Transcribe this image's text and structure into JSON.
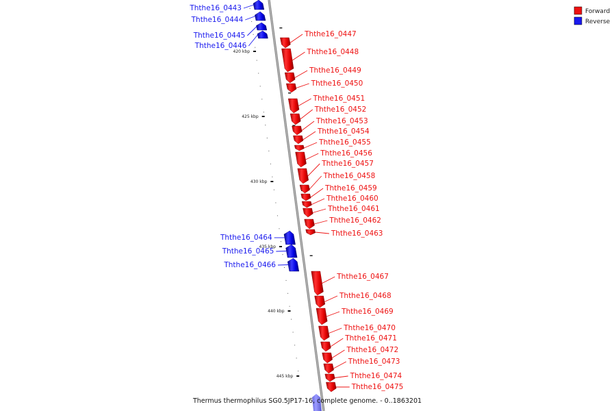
{
  "caption": "Thermus thermophilus SG0.5JP17-16, complete genome. - 0..1863201",
  "legend": {
    "forward_label": "Forward",
    "reverse_label": "Reverse",
    "forward_color": "#ee1111",
    "reverse_color": "#1a1aee"
  },
  "scale_labels": [
    "420 kbp",
    "425 kbp",
    "430 kbp",
    "435 kbp",
    "440 kbp",
    "445 kbp"
  ],
  "genes": [
    {
      "name": "Ththe16_0443",
      "strand": "reverse"
    },
    {
      "name": "Ththe16_0444",
      "strand": "reverse"
    },
    {
      "name": "Ththe16_0445",
      "strand": "reverse"
    },
    {
      "name": "Ththe16_0446",
      "strand": "reverse"
    },
    {
      "name": "Ththe16_0447",
      "strand": "forward"
    },
    {
      "name": "Ththe16_0448",
      "strand": "forward"
    },
    {
      "name": "Ththe16_0449",
      "strand": "forward"
    },
    {
      "name": "Ththe16_0450",
      "strand": "forward"
    },
    {
      "name": "Ththe16_0451",
      "strand": "forward"
    },
    {
      "name": "Ththe16_0452",
      "strand": "forward"
    },
    {
      "name": "Ththe16_0453",
      "strand": "forward"
    },
    {
      "name": "Ththe16_0454",
      "strand": "forward"
    },
    {
      "name": "Ththe16_0455",
      "strand": "forward"
    },
    {
      "name": "Ththe16_0456",
      "strand": "forward"
    },
    {
      "name": "Ththe16_0457",
      "strand": "forward"
    },
    {
      "name": "Ththe16_0458",
      "strand": "forward"
    },
    {
      "name": "Ththe16_0459",
      "strand": "forward"
    },
    {
      "name": "Ththe16_0460",
      "strand": "forward"
    },
    {
      "name": "Ththe16_0461",
      "strand": "forward"
    },
    {
      "name": "Ththe16_0462",
      "strand": "forward"
    },
    {
      "name": "Ththe16_0463",
      "strand": "forward"
    },
    {
      "name": "Ththe16_0464",
      "strand": "reverse"
    },
    {
      "name": "Ththe16_0465",
      "strand": "reverse"
    },
    {
      "name": "Ththe16_0466",
      "strand": "reverse"
    },
    {
      "name": "Ththe16_0467",
      "strand": "forward"
    },
    {
      "name": "Ththe16_0468",
      "strand": "forward"
    },
    {
      "name": "Ththe16_0469",
      "strand": "forward"
    },
    {
      "name": "Ththe16_0470",
      "strand": "forward"
    },
    {
      "name": "Ththe16_0471",
      "strand": "forward"
    },
    {
      "name": "Ththe16_0472",
      "strand": "forward"
    },
    {
      "name": "Ththe16_0473",
      "strand": "forward"
    },
    {
      "name": "Ththe16_0474",
      "strand": "forward"
    },
    {
      "name": "Ththe16_0475",
      "strand": "forward"
    }
  ]
}
